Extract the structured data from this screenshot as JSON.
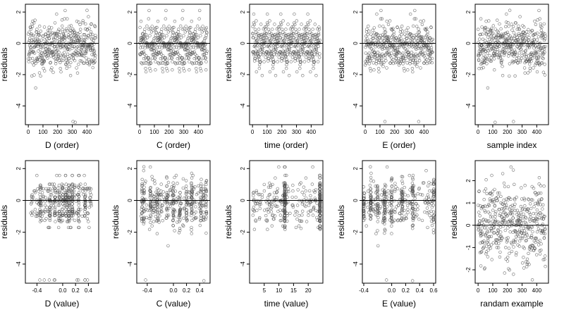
{
  "chart_data": [
    {
      "type": "scatter",
      "xlabel": "D (order)",
      "ylabel": "residuals",
      "xlim": [
        -20,
        480
      ],
      "ylim": [
        -5.2,
        2.5
      ],
      "xticks": [
        0,
        100,
        200,
        300,
        400
      ],
      "xtick_labels": [
        "0",
        "100",
        "200",
        "300",
        "400"
      ],
      "yticks": [
        -4,
        -2,
        0,
        2
      ],
      "ytick_labels": [
        "-4",
        "-2",
        "0",
        "2"
      ],
      "ref_line_y": 0,
      "x_kind": "index"
    },
    {
      "type": "scatter",
      "xlabel": "C (order)",
      "ylabel": "residuals",
      "xlim": [
        -20,
        480
      ],
      "ylim": [
        -5.2,
        2.5
      ],
      "xticks": [
        0,
        100,
        200,
        300,
        400
      ],
      "xtick_labels": [
        "0",
        "100",
        "200",
        "300",
        "400"
      ],
      "yticks": [
        -4,
        -2,
        0,
        2
      ],
      "ytick_labels": [
        "-4",
        "-2",
        "0",
        "2"
      ],
      "ref_line_y": 0,
      "x_kind": "index"
    },
    {
      "type": "scatter",
      "xlabel": "time (order)",
      "ylabel": "residuals",
      "xlim": [
        -20,
        480
      ],
      "ylim": [
        -5.2,
        2.5
      ],
      "xticks": [
        0,
        100,
        200,
        300,
        400
      ],
      "xtick_labels": [
        "0",
        "100",
        "200",
        "300",
        "400"
      ],
      "yticks": [
        -4,
        -2,
        0,
        2
      ],
      "ytick_labels": [
        "-4",
        "-2",
        "0",
        "2"
      ],
      "ref_line_y": 0,
      "x_kind": "index"
    },
    {
      "type": "scatter",
      "xlabel": "E (order)",
      "ylabel": "residuals",
      "xlim": [
        -20,
        480
      ],
      "ylim": [
        -5.2,
        2.5
      ],
      "xticks": [
        0,
        100,
        200,
        300,
        400
      ],
      "xtick_labels": [
        "0",
        "100",
        "200",
        "300",
        "400"
      ],
      "yticks": [
        -4,
        -2,
        0,
        2
      ],
      "ytick_labels": [
        "-4",
        "-2",
        "0",
        "2"
      ],
      "ref_line_y": 0,
      "x_kind": "index"
    },
    {
      "type": "scatter",
      "xlabel": "sample index",
      "ylabel": "residuals",
      "xlim": [
        -20,
        480
      ],
      "ylim": [
        -5.2,
        2.5
      ],
      "xticks": [
        0,
        100,
        200,
        300,
        400
      ],
      "xtick_labels": [
        "0",
        "100",
        "200",
        "300",
        "400"
      ],
      "yticks": [
        -4,
        -2,
        0,
        2
      ],
      "ytick_labels": [
        "-4",
        "-2",
        "0",
        "2"
      ],
      "ref_line_y": 0,
      "x_kind": "index"
    },
    {
      "type": "scatter",
      "xlabel": "D (value)",
      "ylabel": "residuals",
      "xlim": [
        -0.58,
        0.56
      ],
      "ylim": [
        -5.2,
        2.5
      ],
      "xticks": [
        -0.4,
        0.0,
        0.2,
        0.4
      ],
      "xtick_labels": [
        "-0.4",
        "0.0",
        "0.2",
        "0.4"
      ],
      "yticks": [
        -4,
        -2,
        0,
        2
      ],
      "ytick_labels": [
        "-4",
        "-2",
        "0",
        "2"
      ],
      "ref_line_y": 0,
      "x_kind": "continuous",
      "x_range": [
        -0.5,
        0.45
      ],
      "clusters": [
        -0.35,
        -0.2,
        -0.12,
        -0.05,
        0.0,
        0.05,
        0.1,
        0.15,
        0.25,
        0.35
      ]
    },
    {
      "type": "scatter",
      "xlabel": "C (value)",
      "ylabel": "residuals",
      "xlim": [
        -0.56,
        0.56
      ],
      "ylim": [
        -5.2,
        2.5
      ],
      "xticks": [
        -0.4,
        0.0,
        0.2,
        0.4
      ],
      "xtick_labels": [
        "-0.4",
        "0.0",
        "0.2",
        "0.4"
      ],
      "yticks": [
        -4,
        -2,
        0,
        2
      ],
      "ytick_labels": [
        "-4",
        "-2",
        "0",
        "2"
      ],
      "ref_line_y": 0,
      "x_kind": "continuous",
      "x_range": [
        -0.5,
        0.5
      ],
      "clusters": [
        -0.48,
        -0.45,
        -0.35,
        -0.25,
        -0.1,
        0.0,
        0.1,
        0.2,
        0.28,
        0.42,
        0.46,
        0.5
      ]
    },
    {
      "type": "scatter",
      "xlabel": "time (value)",
      "ylabel": "residuals",
      "xlim": [
        0,
        25
      ],
      "ylim": [
        -5.2,
        2.5
      ],
      "xticks": [
        5,
        10,
        15,
        20
      ],
      "xtick_labels": [
        "5",
        "10",
        "15",
        "20"
      ],
      "yticks": [
        -4,
        -2,
        0,
        2
      ],
      "ytick_labels": [
        "-4",
        "-2",
        "0",
        "2"
      ],
      "ref_line_y": 0,
      "x_kind": "continuous",
      "x_range": [
        1,
        24
      ],
      "clusters": [
        12,
        24
      ]
    },
    {
      "type": "scatter",
      "xlabel": "E (value)",
      "ylabel": "residuals",
      "xlim": [
        -0.42,
        0.63
      ],
      "ylim": [
        -5.2,
        2.5
      ],
      "xticks": [
        -0.4,
        0.0,
        0.2,
        0.4,
        0.6
      ],
      "xtick_labels": [
        "-0.4",
        "0.0",
        "0.2",
        "0.4",
        "0.6"
      ],
      "yticks": [
        -4,
        -2,
        0,
        2
      ],
      "ytick_labels": [
        "-4",
        "-2",
        "0",
        "2"
      ],
      "ref_line_y": 0,
      "x_kind": "continuous",
      "x_range": [
        -0.4,
        0.6
      ],
      "clusters": [
        -0.4,
        -0.3,
        -0.2,
        -0.1,
        0.0,
        0.15,
        0.3,
        0.6
      ]
    },
    {
      "type": "scatter",
      "xlabel": "randam example",
      "ylabel": "residuals",
      "xlim": [
        -20,
        480
      ],
      "ylim": [
        -2.6,
        2.9
      ],
      "xticks": [
        0,
        100,
        200,
        300,
        400
      ],
      "xtick_labels": [
        "0",
        "100",
        "200",
        "300",
        "400"
      ],
      "yticks": [
        -2,
        -1,
        0,
        1,
        2
      ],
      "ytick_labels": [
        "-2",
        "-1",
        "0",
        "1",
        "2"
      ],
      "ref_line_y": 0,
      "x_kind": "index",
      "random": true
    }
  ],
  "colors": {
    "points": "#555555",
    "axes": "#000000",
    "ref_line": "#000000"
  }
}
